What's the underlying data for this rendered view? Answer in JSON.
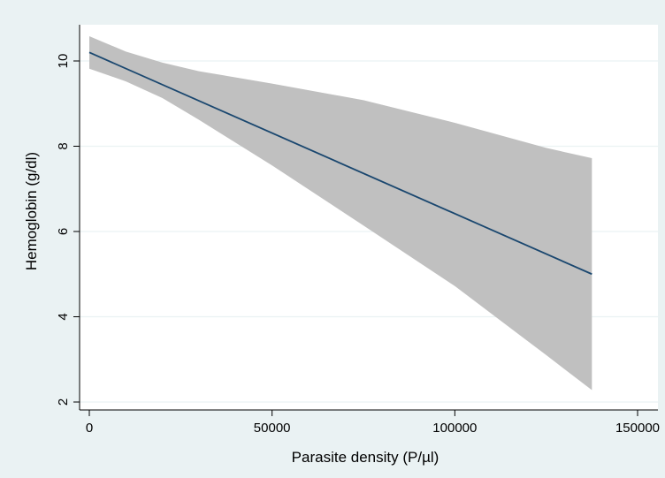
{
  "chart_data": {
    "type": "line",
    "title": "",
    "xlabel": "Parasite density (P/µl)",
    "ylabel": "Hemoglobin (g/dl)",
    "xlim": [
      0,
      150000
    ],
    "ylim": [
      2,
      10.75
    ],
    "x_ticks": [
      0,
      50000,
      100000,
      150000
    ],
    "x_tick_labels": [
      "0",
      "50000",
      "100000",
      "150000"
    ],
    "y_ticks": [
      2,
      4,
      6,
      8,
      10
    ],
    "y_tick_labels": [
      "2",
      "4",
      "6",
      "8",
      "10"
    ],
    "grid": true,
    "legend": "none",
    "series": [
      {
        "kind": "fitted_line",
        "x": [
          0,
          137500
        ],
        "y": [
          10.2,
          5.0
        ],
        "color": "#1a476f"
      },
      {
        "kind": "confidence_band",
        "x": [
          0,
          10000,
          20000,
          30000,
          50000,
          75000,
          100000,
          125000,
          137500
        ],
        "upper": [
          10.58,
          10.22,
          9.96,
          9.76,
          9.47,
          9.08,
          8.55,
          7.96,
          7.72
        ],
        "lower": [
          9.82,
          9.52,
          9.13,
          8.62,
          7.55,
          6.14,
          4.72,
          3.1,
          2.28
        ],
        "color": "#c0c0c0"
      }
    ],
    "colors": {
      "outer_background": "#eaf2f3",
      "plot_background": "#ffffff",
      "gridline": "#eaf2f3",
      "band": "#c0c0c0",
      "line": "#1a476f"
    }
  }
}
